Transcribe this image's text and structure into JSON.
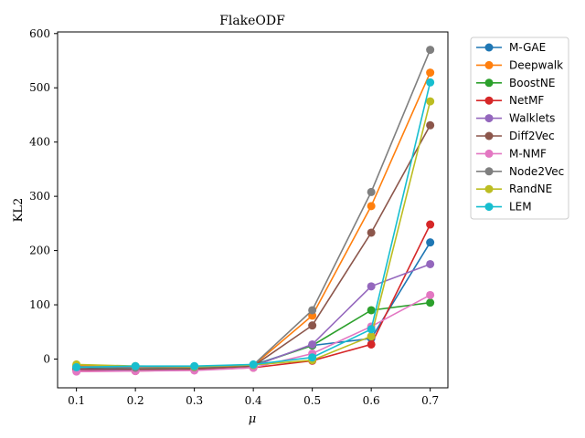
{
  "chart_data": {
    "type": "line",
    "title": "FlakeODF",
    "xlabel": "μ",
    "ylabel": "KL2",
    "x": [
      0.1,
      0.2,
      0.3,
      0.4,
      0.5,
      0.6,
      0.7
    ],
    "x_tick_labels": [
      "0.1",
      "0.2",
      "0.3",
      "0.4",
      "0.5",
      "0.6",
      "0.7"
    ],
    "xlim": [
      0.068,
      0.73
    ],
    "y_ticks": [
      0,
      100,
      200,
      300,
      400,
      500,
      600
    ],
    "ylim": [
      -53,
      603
    ],
    "grid": false,
    "legend_position": "upper-right-outside",
    "series": [
      {
        "name": "M-GAE",
        "color": "#1f77b4",
        "values": [
          -15,
          -17,
          -16,
          -11,
          25,
          38,
          215
        ]
      },
      {
        "name": "Deepwalk",
        "color": "#ff7f0e",
        "values": [
          -12,
          -16,
          -16,
          -12,
          80,
          282,
          528
        ]
      },
      {
        "name": "BoostNE",
        "color": "#2ca02c",
        "values": [
          -18,
          -19,
          -17,
          -12,
          25,
          90,
          104
        ]
      },
      {
        "name": "NetMF",
        "color": "#d62728",
        "values": [
          -20,
          -22,
          -20,
          -16,
          -3,
          27,
          248
        ]
      },
      {
        "name": "Walklets",
        "color": "#9467bd",
        "values": [
          -19,
          -20,
          -18,
          -13,
          27,
          134,
          175
        ]
      },
      {
        "name": "Diff2Vec",
        "color": "#8c564b",
        "values": [
          -18,
          -19,
          -18,
          -13,
          62,
          233,
          431
        ]
      },
      {
        "name": "M-NMF",
        "color": "#e377c2",
        "values": [
          -23,
          -22,
          -21,
          -16,
          10,
          60,
          118
        ]
      },
      {
        "name": "Node2Vec",
        "color": "#7f7f7f",
        "values": [
          -14,
          -16,
          -15,
          -11,
          90,
          308,
          570
        ]
      },
      {
        "name": "RandNE",
        "color": "#bcbd22",
        "values": [
          -10,
          -13,
          -14,
          -11,
          -2,
          42,
          475
        ]
      },
      {
        "name": "LEM",
        "color": "#17becf",
        "values": [
          -15,
          -13,
          -13,
          -10,
          3,
          55,
          510
        ]
      }
    ]
  }
}
